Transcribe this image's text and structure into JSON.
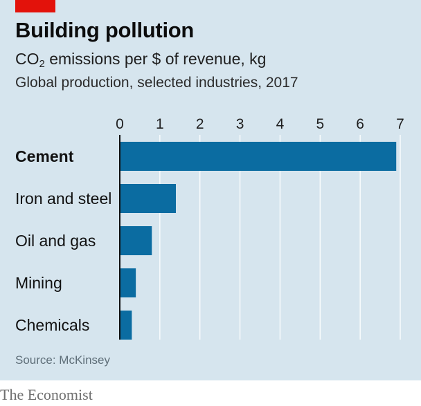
{
  "header": {
    "title": "Building pollution",
    "subtitle_main": "CO",
    "subtitle_sub": "2",
    "subtitle_rest": " emissions per $ of revenue, kg",
    "subtitle2": "Global production, selected industries, 2017"
  },
  "footer": {
    "source": "Source: McKinsey",
    "brand": "The Economist"
  },
  "colors": {
    "bar": "#0b6ca1",
    "background": "#d6e5ee",
    "gridline": "#ffffff",
    "accent_tag": "#e3120b"
  },
  "chart_data": {
    "type": "bar",
    "orientation": "horizontal",
    "categories": [
      "Cement",
      "Iron and steel",
      "Oil and gas",
      "Mining",
      "Chemicals"
    ],
    "values": [
      6.9,
      1.4,
      0.8,
      0.4,
      0.3
    ],
    "highlighted_category": "Cement",
    "xlim": [
      0,
      7
    ],
    "xticks": [
      "0",
      "1",
      "2",
      "3",
      "4",
      "5",
      "6",
      "7"
    ],
    "tick_position": "top",
    "grid": true
  }
}
